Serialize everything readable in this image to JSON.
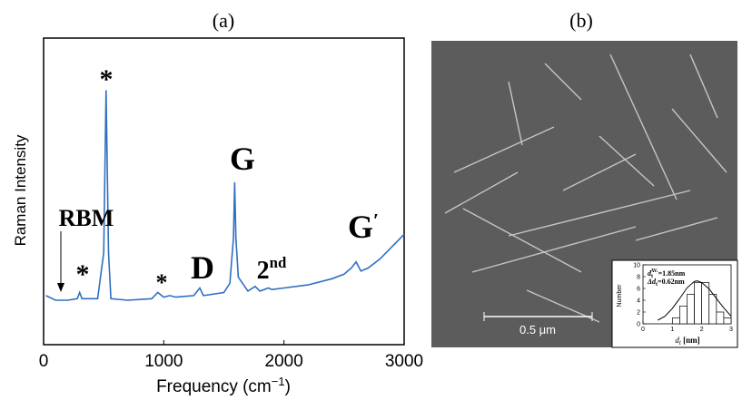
{
  "chart_data": [
    {
      "type": "line",
      "title": "(a)",
      "x_label": "Frequency (cm",
      "x_label_sup": "−1",
      "x_label_end": ")",
      "y_label": "Raman Intensity",
      "color": "#2f6fc0",
      "xlim": [
        0,
        3000
      ],
      "ylim": [
        0,
        100
      ],
      "xticks": [
        0,
        1000,
        2000,
        3000
      ],
      "x": [
        20,
        100,
        200,
        280,
        300,
        320,
        450,
        500,
        520,
        540,
        560,
        700,
        900,
        950,
        1000,
        1050,
        1100,
        1250,
        1300,
        1330,
        1500,
        1550,
        1580,
        1590,
        1600,
        1620,
        1700,
        1760,
        1800,
        1870,
        1900,
        2000,
        2200,
        2400,
        2500,
        2560,
        2600,
        2640,
        2700,
        2800,
        2900,
        3000
      ],
      "values": [
        16,
        14.5,
        14.5,
        15,
        17,
        15,
        15,
        30,
        83,
        30,
        15,
        14.5,
        15,
        17,
        15.5,
        16,
        15.5,
        16,
        18.5,
        16,
        17,
        20,
        35,
        53,
        35,
        22,
        17.5,
        19,
        17.5,
        18.5,
        18,
        18.5,
        19.5,
        21.5,
        23,
        25,
        27,
        24,
        25,
        28,
        32,
        36
      ],
      "annotations": [
        {
          "text": "RBM"
        },
        {
          "text": "*"
        },
        {
          "text": "*"
        },
        {
          "text": "*"
        },
        {
          "text": "D"
        },
        {
          "text": "G"
        },
        {
          "text": "2",
          "sup": "nd"
        },
        {
          "text": "G",
          "sup": "′"
        }
      ]
    },
    {
      "type": "histogram",
      "y_label": "Number",
      "x_label": "d",
      "x_label_sub": "t",
      "x_label_end": " [nm]",
      "color": "#ffffff",
      "bins": [
        1,
        1.25,
        1.5,
        1.75,
        2,
        2.25,
        2.5,
        2.75,
        3
      ],
      "values": [
        1,
        3,
        5,
        7,
        7,
        5,
        2,
        1
      ],
      "xlim": [
        0,
        3
      ],
      "ylim": [
        0,
        10
      ],
      "xticks": [
        0,
        1,
        2,
        3
      ],
      "yticks": [
        0,
        2,
        4,
        6,
        8,
        10
      ],
      "fit": {
        "x": [
          0.5,
          0.75,
          1,
          1.25,
          1.5,
          1.75,
          1.85,
          2,
          2.25,
          2.5,
          2.75,
          3
        ],
        "values": [
          0.6,
          1.3,
          2.6,
          4.3,
          6.1,
          7.2,
          7.3,
          7,
          5.9,
          4.3,
          2.7,
          1.3
        ]
      },
      "stats": [
        {
          "base": "d",
          "sub": "t",
          "sup": "AV.",
          "rest": "=1.85nm"
        },
        {
          "base": "Δd",
          "sub": "t",
          "rest": "=0.62nm"
        }
      ]
    }
  ],
  "panel_b": {
    "label": "(b)",
    "scale_bar": "0.5 μm"
  }
}
